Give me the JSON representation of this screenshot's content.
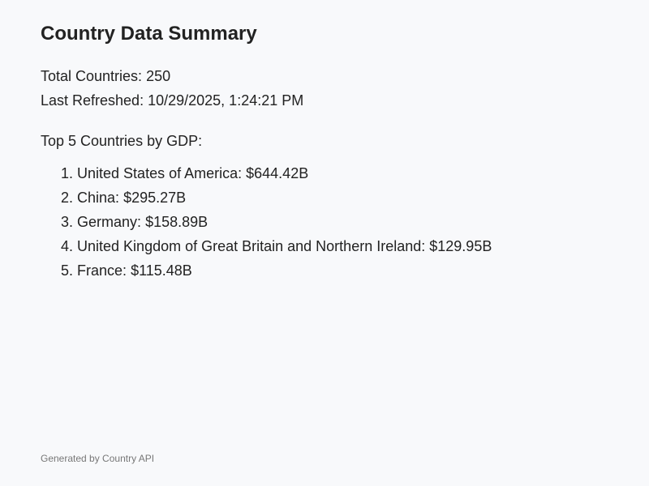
{
  "summary": {
    "title": "Country Data Summary",
    "total_label": "Total Countries:",
    "total_value": "250",
    "refreshed_label": "Last Refreshed:",
    "refreshed_value": "10/29/2025, 1:24:21 PM"
  },
  "top_gdp": {
    "heading": "Top 5 Countries by GDP:",
    "items": [
      {
        "rank": "1.",
        "country": "United States of America",
        "gdp": "$644.42B"
      },
      {
        "rank": "2.",
        "country": "China",
        "gdp": "$295.27B"
      },
      {
        "rank": "3.",
        "country": "Germany",
        "gdp": "$158.89B"
      },
      {
        "rank": "4.",
        "country": "United Kingdom of Great Britain and Northern Ireland",
        "gdp": "$129.95B"
      },
      {
        "rank": "5.",
        "country": "France",
        "gdp": "$115.48B"
      }
    ]
  },
  "footer": {
    "text": "Generated by Country API"
  }
}
